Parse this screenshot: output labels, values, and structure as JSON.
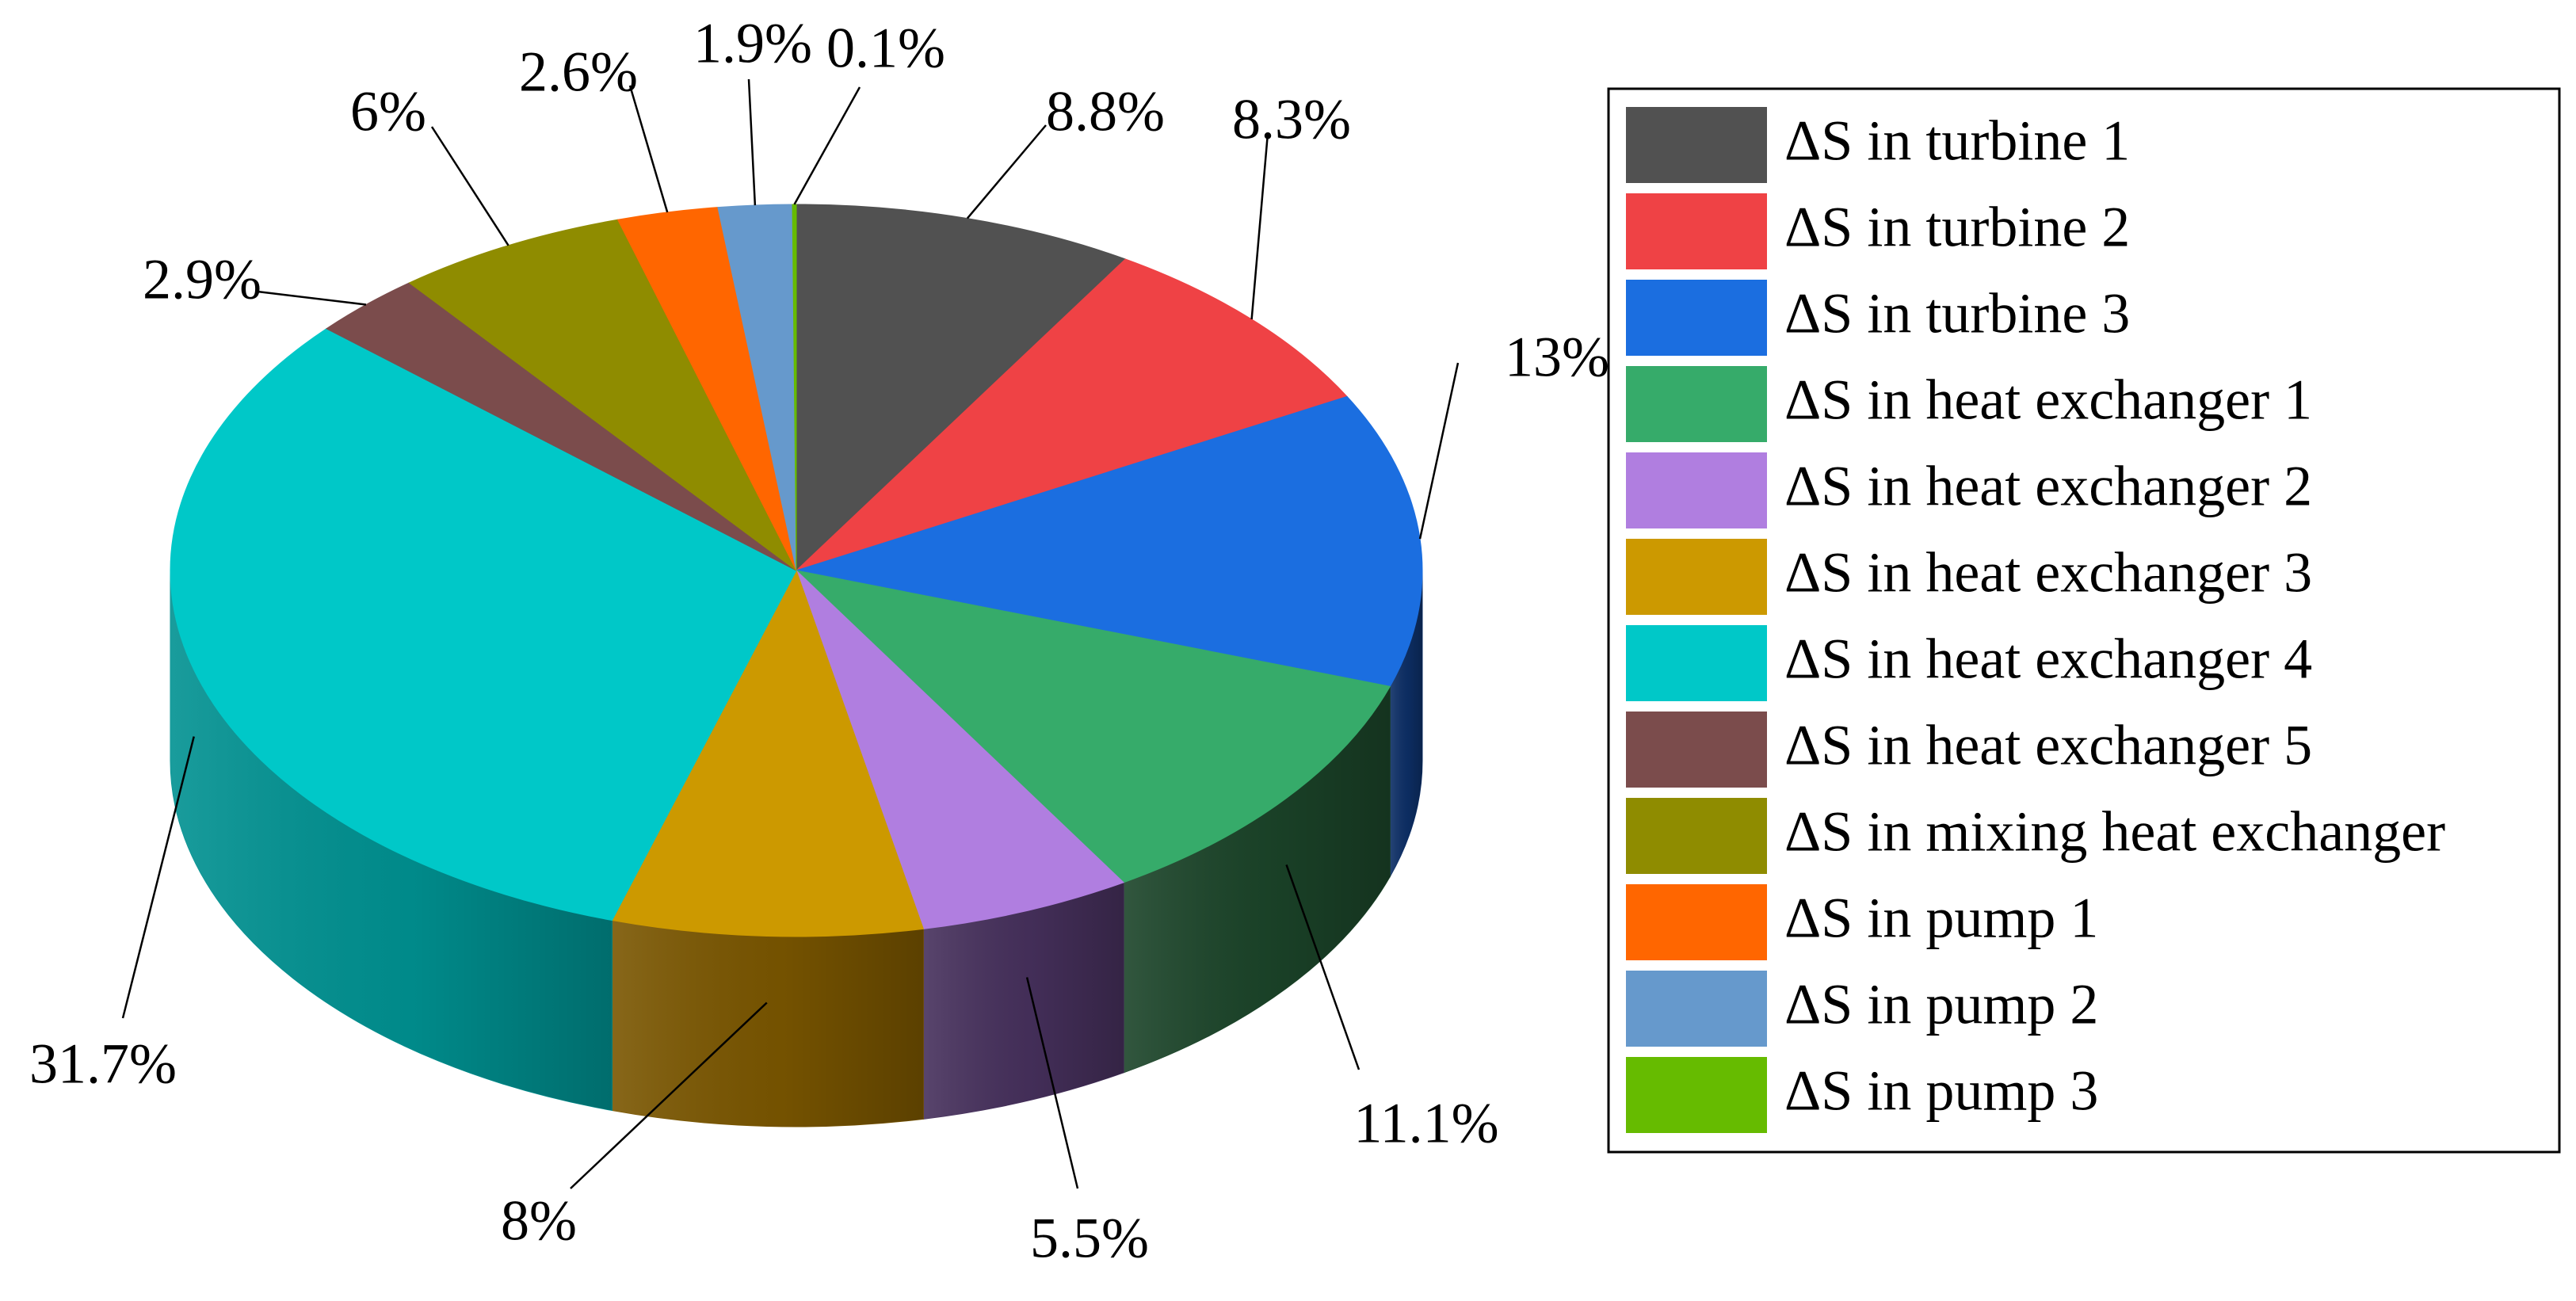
{
  "chart_data": {
    "type": "pie",
    "style": "3d",
    "legend_position": "right",
    "start": "top, clockwise",
    "slices": [
      {
        "label": "ΔS in turbine 1",
        "value": 8.8,
        "display": "8.8%",
        "color": "#515151",
        "side_color": "#2e2e2e"
      },
      {
        "label": "ΔS in turbine 2",
        "value": 8.3,
        "display": "8.3%",
        "color": "#ef4245",
        "side_color": "#8a2022"
      },
      {
        "label": "ΔS in turbine 3",
        "value": 13.0,
        "display": "13%",
        "color": "#1b6ee0",
        "side_color": "#0d2f66"
      },
      {
        "label": "ΔS in heat exchanger 1",
        "value": 11.1,
        "display": "11.1%",
        "color": "#36ab6a",
        "side_color": "#1b4429"
      },
      {
        "label": "ΔS in heat exchanger 2",
        "value": 5.5,
        "display": "5.5%",
        "color": "#b07ee0",
        "side_color": "#46305c"
      },
      {
        "label": "ΔS in heat exchanger 3",
        "value": 8.0,
        "display": "8%",
        "color": "#cc9900",
        "side_color": "#7a5600"
      },
      {
        "label": "ΔS in heat exchanger 4",
        "value": 31.7,
        "display": "31.7%",
        "color": "#00c8c8",
        "side_color": "#009191"
      },
      {
        "label": "ΔS in heat exchanger 5",
        "value": 2.9,
        "display": "2.9%",
        "color": "#7b4c4c",
        "side_color": "#4a2d2d"
      },
      {
        "label": "ΔS in mixing heat exchanger",
        "value": 6.0,
        "display": "6%",
        "color": "#8f8c00",
        "side_color": "#555300"
      },
      {
        "label": "ΔS in pump 1",
        "value": 2.6,
        "display": "2.6%",
        "color": "#ff6600",
        "side_color": "#993d00"
      },
      {
        "label": "ΔS in pump 2",
        "value": 1.9,
        "display": "1.9%",
        "color": "#6699cc",
        "side_color": "#3d5c7a"
      },
      {
        "label": "ΔS in pump 3",
        "value": 0.1,
        "display": "0.1%",
        "color": "#66bb00",
        "side_color": "#3d7000"
      }
    ]
  }
}
